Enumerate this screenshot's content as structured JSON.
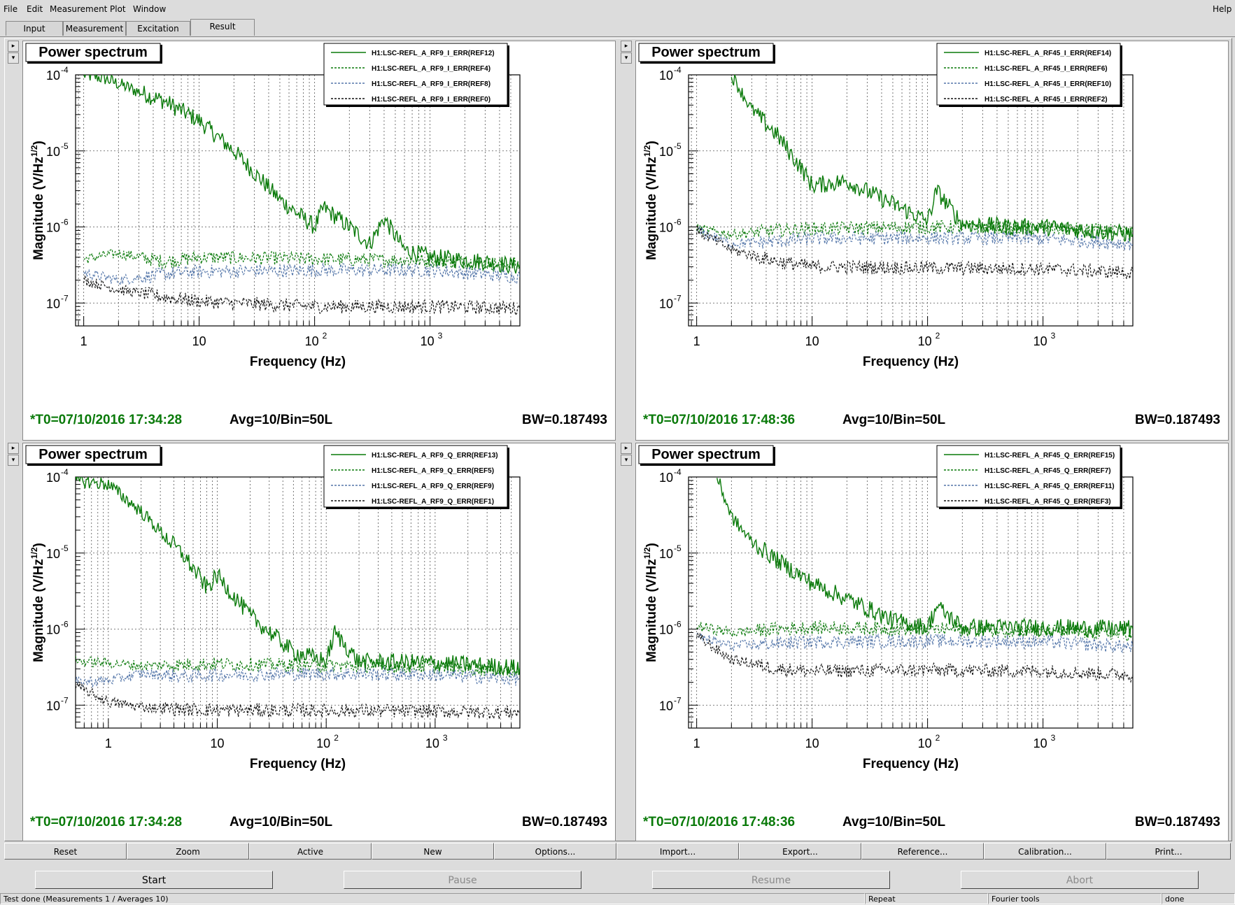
{
  "menu": {
    "file": "File",
    "edit": "Edit",
    "measurement": "Measurement",
    "plot": "Plot",
    "window": "Window",
    "help": "Help"
  },
  "tabs": [
    "Input",
    "Measurement",
    "Excitation",
    "Result"
  ],
  "active_tab": "Result",
  "plots": [
    {
      "title": "Power spectrum",
      "legend": [
        "H1:LSC-REFL_A_RF9_I_ERR(REF12)",
        "H1:LSC-REFL_A_RF9_I_ERR(REF4)",
        "H1:LSC-REFL_A_RF9_I_ERR(REF8)",
        "H1:LSC-REFL_A_RF9_I_ERR(REF0)"
      ],
      "t0": "*T0=07/10/2016 17:34:28",
      "avg": "Avg=10/Bin=50L",
      "bw": "BW=0.187493",
      "xlabel": "Frequency (Hz)",
      "ylabel": "Magnitude (V/Hz^1/2)"
    },
    {
      "title": "Power spectrum",
      "legend": [
        "H1:LSC-REFL_A_RF45_I_ERR(REF14)",
        "H1:LSC-REFL_A_RF45_I_ERR(REF6)",
        "H1:LSC-REFL_A_RF45_I_ERR(REF10)",
        "H1:LSC-REFL_A_RF45_I_ERR(REF2)"
      ],
      "t0": "*T0=07/10/2016 17:48:36",
      "avg": "Avg=10/Bin=50L",
      "bw": "BW=0.187493",
      "xlabel": "Frequency (Hz)",
      "ylabel": "Magnitude (V/Hz^1/2)"
    },
    {
      "title": "Power spectrum",
      "legend": [
        "H1:LSC-REFL_A_RF9_Q_ERR(REF13)",
        "H1:LSC-REFL_A_RF9_Q_ERR(REF5)",
        "H1:LSC-REFL_A_RF9_Q_ERR(REF9)",
        "H1:LSC-REFL_A_RF9_Q_ERR(REF1)"
      ],
      "t0": "*T0=07/10/2016 17:34:28",
      "avg": "Avg=10/Bin=50L",
      "bw": "BW=0.187493",
      "xlabel": "Frequency (Hz)",
      "ylabel": "Magnitude (V/Hz^1/2)"
    },
    {
      "title": "Power spectrum",
      "legend": [
        "H1:LSC-REFL_A_RF45_Q_ERR(REF15)",
        "H1:LSC-REFL_A_RF45_Q_ERR(REF7)",
        "H1:LSC-REFL_A_RF45_Q_ERR(REF11)",
        "H1:LSC-REFL_A_RF45_Q_ERR(REF3)"
      ],
      "t0": "*T0=07/10/2016 17:48:36",
      "avg": "Avg=10/Bin=50L",
      "bw": "BW=0.187493",
      "xlabel": "Frequency (Hz)",
      "ylabel": "Magnitude (V/Hz^1/2)"
    }
  ],
  "series_styles": [
    {
      "color": "#0a7a0a",
      "dash": "solid"
    },
    {
      "color": "#0a7a0a",
      "dash": "dotted"
    },
    {
      "color": "#5577aa",
      "dash": "dotted"
    },
    {
      "color": "#111111",
      "dash": "dotted"
    }
  ],
  "plot_buttons": [
    "Reset",
    "Zoom",
    "Active",
    "New",
    "Options...",
    "Import...",
    "Export...",
    "Reference...",
    "Calibration...",
    "Print..."
  ],
  "control_buttons": [
    {
      "label": "Start",
      "enabled": true
    },
    {
      "label": "Pause",
      "enabled": false
    },
    {
      "label": "Resume",
      "enabled": false
    },
    {
      "label": "Abort",
      "enabled": false
    }
  ],
  "status": {
    "main": "Test done (Measurements 1 / Averages 10)",
    "repeat": "Repeat",
    "tools": "Fourier tools",
    "state": "done"
  },
  "chart_data": [
    {
      "type": "line",
      "title": "Power spectrum",
      "xscale": "log",
      "yscale": "log",
      "xlabel": "Frequency (Hz)",
      "ylabel": "Magnitude (V/Hz^1/2)",
      "xlim": [
        0.85,
        6000
      ],
      "ylim": [
        5e-08,
        0.0001
      ],
      "legend_placement": "top-right",
      "series": [
        {
          "name": "H1:LSC-REFL_A_RF9_I_ERR(REF12)",
          "x": [
            1,
            1.5,
            3,
            5,
            10,
            20,
            50,
            100,
            120,
            200,
            300,
            400,
            600,
            1000,
            3000,
            6000
          ],
          "y": [
            0.0001,
            9e-05,
            6e-05,
            4.5e-05,
            2.5e-05,
            1e-05,
            2.3e-06,
            1e-06,
            1.8e-06,
            1e-06,
            6e-07,
            1.3e-06,
            5e-07,
            4e-07,
            3.5e-07,
            3e-07
          ]
        },
        {
          "name": "H1:LSC-REFL_A_RF9_I_ERR(REF4)",
          "x": [
            1,
            2,
            5,
            10,
            100,
            1000,
            6000
          ],
          "y": [
            3.8e-07,
            4.5e-07,
            3.5e-07,
            4e-07,
            3.8e-07,
            3.6e-07,
            3.2e-07
          ]
        },
        {
          "name": "H1:LSC-REFL_A_RF9_I_ERR(REF8)",
          "x": [
            1,
            2,
            5,
            10,
            100,
            1000,
            6000
          ],
          "y": [
            2.5e-07,
            2e-07,
            2.4e-07,
            2.6e-07,
            2.7e-07,
            2.7e-07,
            2.2e-07
          ]
        },
        {
          "name": "H1:LSC-REFL_A_RF9_I_ERR(REF0)",
          "x": [
            1,
            2,
            5,
            10,
            100,
            1000,
            6000
          ],
          "y": [
            2e-07,
            1.5e-07,
            1.2e-07,
            1.05e-07,
            9e-08,
            9e-08,
            8.5e-08
          ]
        }
      ]
    },
    {
      "type": "line",
      "title": "Power spectrum",
      "xscale": "log",
      "yscale": "log",
      "xlabel": "Frequency (Hz)",
      "ylabel": "Magnitude (V/Hz^1/2)",
      "xlim": [
        0.85,
        6000
      ],
      "ylim": [
        5e-08,
        0.0001
      ],
      "legend_placement": "top-right",
      "series": [
        {
          "name": "H1:LSC-REFL_A_RF45_I_ERR(REF14)",
          "x": [
            2,
            3,
            5,
            8,
            10,
            20,
            50,
            100,
            120,
            200,
            500,
            1000,
            6000
          ],
          "y": [
            0.0001,
            3.5e-05,
            1.6e-05,
            6e-06,
            3.5e-06,
            4e-06,
            2e-06,
            1.2e-06,
            3e-06,
            1.1e-06,
            1e-06,
            1e-06,
            8e-07
          ]
        },
        {
          "name": "H1:LSC-REFL_A_RF45_I_ERR(REF6)",
          "x": [
            1,
            2,
            5,
            10,
            100,
            1000,
            6000
          ],
          "y": [
            9.5e-07,
            8e-07,
            9e-07,
            9.5e-07,
            1e-06,
            9.8e-07,
            8.5e-07
          ]
        },
        {
          "name": "H1:LSC-REFL_A_RF45_I_ERR(REF10)",
          "x": [
            1,
            2,
            5,
            10,
            100,
            1000,
            6000
          ],
          "y": [
            9e-07,
            6e-07,
            6.5e-07,
            7e-07,
            7.2e-07,
            7e-07,
            6e-07
          ]
        },
        {
          "name": "H1:LSC-REFL_A_RF45_I_ERR(REF2)",
          "x": [
            1,
            2,
            5,
            10,
            100,
            1000,
            6000
          ],
          "y": [
            9e-07,
            5e-07,
            3.5e-07,
            3e-07,
            2.9e-07,
            2.8e-07,
            2.5e-07
          ]
        }
      ]
    },
    {
      "type": "line",
      "title": "Power spectrum",
      "xscale": "log",
      "yscale": "log",
      "xlabel": "Frequency (Hz)",
      "ylabel": "Magnitude (V/Hz^1/2)",
      "xlim": [
        0.5,
        6000
      ],
      "ylim": [
        5e-08,
        0.0001
      ],
      "legend_placement": "top-right",
      "series": [
        {
          "name": "H1:LSC-REFL_A_RF9_Q_ERR(REF13)",
          "x": [
            0.5,
            1,
            2,
            5,
            8,
            10,
            20,
            50,
            100,
            120,
            200,
            1000,
            6000
          ],
          "y": [
            9e-05,
            8e-05,
            3.5e-05,
            9e-06,
            3.5e-06,
            5e-06,
            1.5e-06,
            5e-07,
            3.8e-07,
            9e-07,
            3.7e-07,
            3.6e-07,
            3.1e-07
          ]
        },
        {
          "name": "H1:LSC-REFL_A_RF9_Q_ERR(REF5)",
          "x": [
            0.5,
            1,
            2,
            5,
            10,
            100,
            1000,
            6000
          ],
          "y": [
            3.8e-07,
            3.6e-07,
            3.3e-07,
            3.4e-07,
            3.5e-07,
            3.3e-07,
            3.2e-07,
            2.8e-07
          ]
        },
        {
          "name": "H1:LSC-REFL_A_RF9_Q_ERR(REF9)",
          "x": [
            0.5,
            1,
            2,
            5,
            10,
            100,
            1000,
            6000
          ],
          "y": [
            2e-07,
            2.1e-07,
            2.6e-07,
            2.4e-07,
            2.5e-07,
            2.6e-07,
            2.5e-07,
            2.2e-07
          ]
        },
        {
          "name": "H1:LSC-REFL_A_RF9_Q_ERR(REF1)",
          "x": [
            0.5,
            1,
            2,
            5,
            10,
            100,
            1000,
            6000
          ],
          "y": [
            1.8e-07,
            1.1e-07,
            9.5e-08,
            8.8e-08,
            8.6e-08,
            8.5e-08,
            8.3e-08,
            8e-08
          ]
        }
      ]
    },
    {
      "type": "line",
      "title": "Power spectrum",
      "xscale": "log",
      "yscale": "log",
      "xlabel": "Frequency (Hz)",
      "ylabel": "Magnitude (V/Hz^1/2)",
      "xlim": [
        0.85,
        6000
      ],
      "ylim": [
        5e-08,
        0.0001
      ],
      "legend_placement": "top-right",
      "series": [
        {
          "name": "H1:LSC-REFL_A_RF45_Q_ERR(REF15)",
          "x": [
            1.5,
            2,
            3,
            5,
            10,
            20,
            50,
            100,
            120,
            200,
            1000,
            6000
          ],
          "y": [
            0.0001,
            3e-05,
            1.4e-05,
            8e-06,
            4e-06,
            2.5e-06,
            1.3e-06,
            1.05e-06,
            2e-06,
            1.05e-06,
            1.05e-06,
            1e-06
          ]
        },
        {
          "name": "H1:LSC-REFL_A_RF45_Q_ERR(REF7)",
          "x": [
            1,
            2,
            5,
            10,
            100,
            1000,
            6000
          ],
          "y": [
            1.1e-06,
            9e-07,
            1e-06,
            1.05e-06,
            1e-06,
            9.5e-07,
            8.5e-07
          ]
        },
        {
          "name": "H1:LSC-REFL_A_RF45_Q_ERR(REF11)",
          "x": [
            1,
            2,
            5,
            10,
            100,
            1000,
            6000
          ],
          "y": [
            8e-07,
            6e-07,
            6.5e-07,
            6.8e-07,
            7e-07,
            6.8e-07,
            5.8e-07
          ]
        },
        {
          "name": "H1:LSC-REFL_A_RF45_Q_ERR(REF3)",
          "x": [
            1,
            2,
            5,
            10,
            100,
            1000,
            6000
          ],
          "y": [
            8e-07,
            4e-07,
            3e-07,
            2.8e-07,
            2.9e-07,
            2.8e-07,
            2.5e-07
          ]
        }
      ]
    }
  ]
}
